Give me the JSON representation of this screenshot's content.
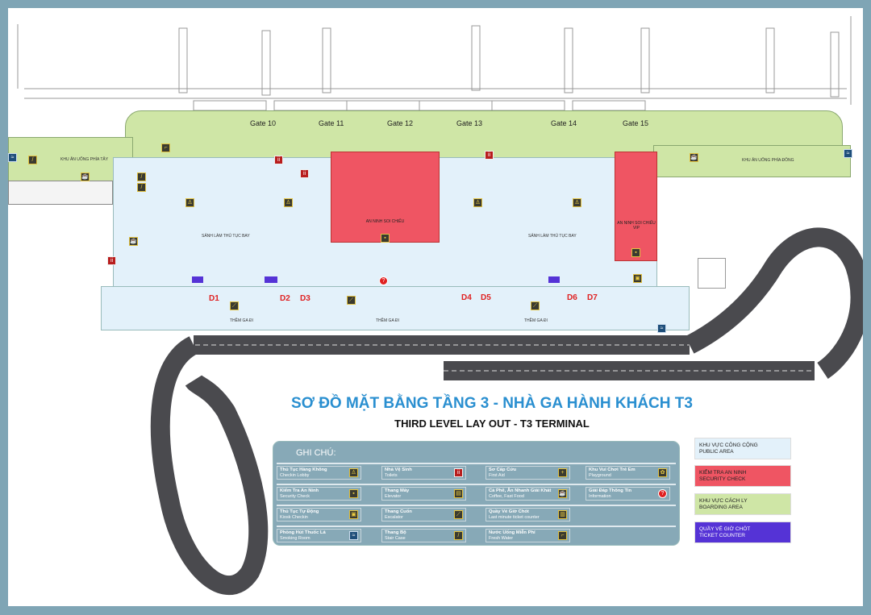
{
  "title": "SƠ ĐỒ MẶT BẰNG TẦNG 3 - NHÀ GA HÀNH KHÁCH T3",
  "subtitle": "THIRD LEVEL LAY OUT - T3 TERMINAL",
  "gates": [
    "Gate 10",
    "Gate 11",
    "Gate 12",
    "Gate 13",
    "Gate 14",
    "Gate 15"
  ],
  "doors": [
    "D1",
    "D2",
    "D3",
    "D4",
    "D5",
    "D6",
    "D7"
  ],
  "areas": {
    "west_food": "KHU ĂN UỐNG PHÍA TÂY",
    "east_food": "KHU ĂN UỐNG PHÍA ĐÔNG",
    "checkin_hall": "SẢNH LÀM THỦ TỤC BAY",
    "departure_curb": "THỀM GA ĐI",
    "security": "AN NINH SOI CHIẾU",
    "security_vip": "AN NINH SOI CHIẾU VIP"
  },
  "legend": {
    "heading": "GHI CHÚ:",
    "items": [
      {
        "vi": "Thủ Tục Hàng Không",
        "en": "Checkin Lobby",
        "icon": "checkin-icon"
      },
      {
        "vi": "Nhà Vệ Sinh",
        "en": "Toilets",
        "icon": "toilet-icon"
      },
      {
        "vi": "Sơ Cấp Cứu",
        "en": "First Aid",
        "icon": "first-aid-icon"
      },
      {
        "vi": "Khu Vui Chơi Trẻ Em",
        "en": "Playground",
        "icon": "playground-icon"
      },
      {
        "vi": "Kiểm Tra An Ninh",
        "en": "Security Check",
        "icon": "security-icon"
      },
      {
        "vi": "Thang Máy",
        "en": "Elevator",
        "icon": "elevator-icon"
      },
      {
        "vi": "Cà Phê, Ăn Nhanh Giải Khát",
        "en": "Coffee, Fast Food",
        "icon": "coffee-icon"
      },
      {
        "vi": "Giải Đáp Thông Tin",
        "en": "Information",
        "icon": "information-icon"
      },
      {
        "vi": "Thủ Tục Tự Động",
        "en": "Kiosk Checkin",
        "icon": "kiosk-icon"
      },
      {
        "vi": "Thang Cuốn",
        "en": "Escalator",
        "icon": "escalator-icon"
      },
      {
        "vi": "Quầy Vé Giờ Chót",
        "en": "Last minute ticket counter",
        "icon": "ticket-counter-icon"
      },
      {
        "vi": "Phòng Hút Thuốc Lá",
        "en": "Smoking Room",
        "icon": "smoking-icon"
      },
      {
        "vi": "Thang Bộ",
        "en": "Stair Case",
        "icon": "stairs-icon"
      },
      {
        "vi": "Nước Uống Miễn Phí",
        "en": "Fresh Water",
        "icon": "water-icon"
      }
    ]
  },
  "color_key": [
    {
      "vi": "KHU VỰC CÔNG CỘNG",
      "en": "PUBLIC AREA",
      "color": "#e3f1fa"
    },
    {
      "vi": "KIỂM TRA AN NINH",
      "en": "SECURITY CHECK",
      "color": "#ef5563"
    },
    {
      "vi": "KHU VỰC CÁCH LY",
      "en": "BOARDING AREA",
      "color": "#cfe6a6"
    },
    {
      "vi": "QUẦY VÉ GIỜ CHÓT",
      "en": "TICKET COUNTER",
      "color": "#5533d6"
    }
  ]
}
